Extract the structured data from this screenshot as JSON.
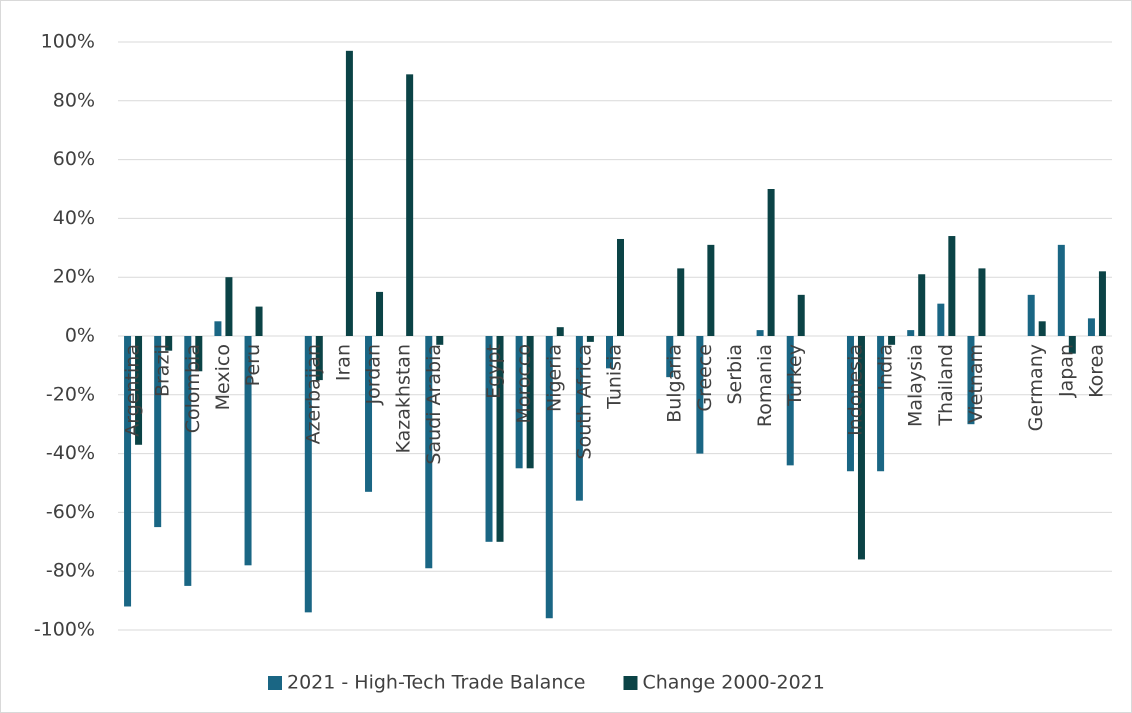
{
  "chart_data": {
    "type": "bar",
    "categories": [
      "Argentina",
      "Brazil",
      "Colombia",
      "Mexico",
      "Peru",
      null,
      "Azerbaijan",
      "Iran",
      "Jordan",
      "Kazakhstan",
      "Saudi Arabia",
      null,
      "Egypt",
      "Morocco",
      "Nigeria",
      "South Africa",
      "Tunisia",
      null,
      "Bulgaria",
      "Greece",
      "Serbia",
      "Romania",
      "Turkey",
      null,
      "Indonesia",
      "India",
      "Malaysia",
      "Thailand",
      "Vietnam",
      null,
      "Germany",
      "Japan",
      "Korea"
    ],
    "series": [
      {
        "name": "2021 - High-Tech Trade Balance",
        "color": "#1a6684",
        "values": [
          -92,
          -65,
          -85,
          5,
          -78,
          null,
          -94,
          0,
          -53,
          0,
          -79,
          null,
          -70,
          -45,
          -96,
          -56,
          -11,
          null,
          -14,
          -40,
          0,
          2,
          -44,
          null,
          -46,
          -46,
          2,
          11,
          -30,
          null,
          14,
          31,
          6
        ]
      },
      {
        "name": "Change 2000-2021",
        "color": "#0b4346",
        "values": [
          -37,
          -5,
          -12,
          20,
          10,
          null,
          -15,
          97,
          15,
          89,
          -3,
          null,
          -70,
          -45,
          3,
          -2,
          33,
          null,
          23,
          31,
          0,
          50,
          14,
          null,
          -76,
          -3,
          21,
          34,
          23,
          null,
          5,
          -6,
          22
        ]
      }
    ],
    "ylim": [
      -100,
      100
    ],
    "yticks": [
      {
        "value": -100,
        "label": "-100%"
      },
      {
        "value": -80,
        "label": "-80%"
      },
      {
        "value": -60,
        "label": "-60%"
      },
      {
        "value": -40,
        "label": "-40%"
      },
      {
        "value": -20,
        "label": "-20%"
      },
      {
        "value": 0,
        "label": "0%"
      },
      {
        "value": 20,
        "label": "20%"
      },
      {
        "value": 40,
        "label": "40%"
      },
      {
        "value": 60,
        "label": "60%"
      },
      {
        "value": 80,
        "label": "80%"
      },
      {
        "value": 100,
        "label": "100%"
      }
    ],
    "grid": true,
    "legend": "bottom"
  }
}
